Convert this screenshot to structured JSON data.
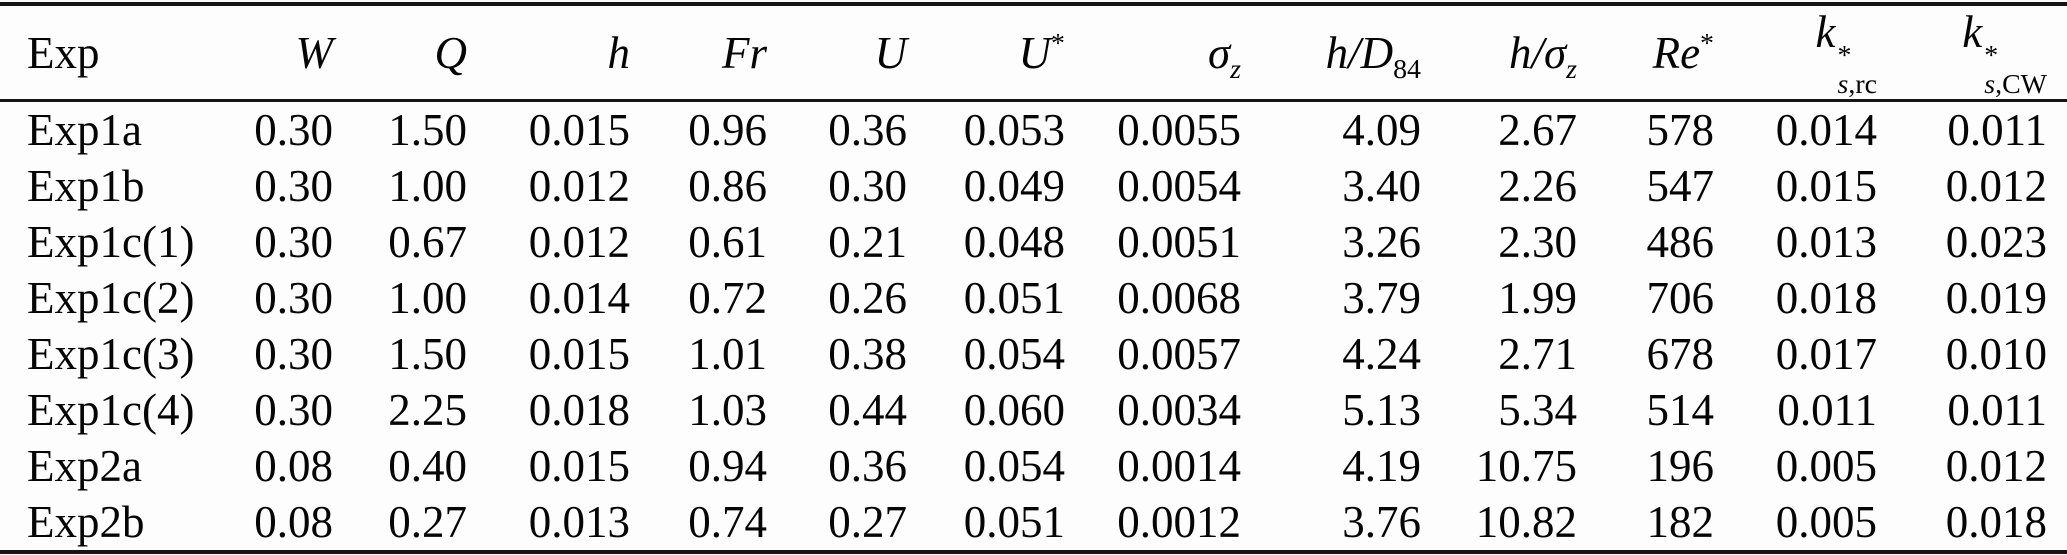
{
  "colors": {
    "background": "#fdfdfd",
    "text": "#050505",
    "rule": "#151515"
  },
  "table": {
    "columns": [
      {
        "label": "Exp"
      },
      {
        "symbol": "W"
      },
      {
        "symbol": "Q"
      },
      {
        "symbol": "h"
      },
      {
        "symbol": "Fr"
      },
      {
        "symbol": "U"
      },
      {
        "symbol": "U",
        "sup": "*"
      },
      {
        "symbol": "σ",
        "sub": "z"
      },
      {
        "symbol": "h/D",
        "sub": "84"
      },
      {
        "symbol": "h/σ",
        "sub": "z"
      },
      {
        "symbol": "Re",
        "sup": "*"
      },
      {
        "symbol": "k",
        "sup": "*",
        "sub_italic": "s",
        "sub_roman": ",rc"
      },
      {
        "symbol": "k",
        "sup": "*",
        "sub_italic": "s",
        "sub_roman": ",CW"
      }
    ],
    "rows": [
      {
        "exp": "Exp1a",
        "values": [
          "0.30",
          "1.50",
          "0.015",
          "0.96",
          "0.36",
          "0.053",
          "0.0055",
          "4.09",
          "2.67",
          "578",
          "0.014",
          "0.011"
        ]
      },
      {
        "exp": "Exp1b",
        "values": [
          "0.30",
          "1.00",
          "0.012",
          "0.86",
          "0.30",
          "0.049",
          "0.0054",
          "3.40",
          "2.26",
          "547",
          "0.015",
          "0.012"
        ]
      },
      {
        "exp": "Exp1c(1)",
        "values": [
          "0.30",
          "0.67",
          "0.012",
          "0.61",
          "0.21",
          "0.048",
          "0.0051",
          "3.26",
          "2.30",
          "486",
          "0.013",
          "0.023"
        ]
      },
      {
        "exp": "Exp1c(2)",
        "values": [
          "0.30",
          "1.00",
          "0.014",
          "0.72",
          "0.26",
          "0.051",
          "0.0068",
          "3.79",
          "1.99",
          "706",
          "0.018",
          "0.019"
        ]
      },
      {
        "exp": "Exp1c(3)",
        "values": [
          "0.30",
          "1.50",
          "0.015",
          "1.01",
          "0.38",
          "0.054",
          "0.0057",
          "4.24",
          "2.71",
          "678",
          "0.017",
          "0.010"
        ]
      },
      {
        "exp": "Exp1c(4)",
        "values": [
          "0.30",
          "2.25",
          "0.018",
          "1.03",
          "0.44",
          "0.060",
          "0.0034",
          "5.13",
          "5.34",
          "514",
          "0.011",
          "0.011"
        ]
      },
      {
        "exp": "Exp2a",
        "values": [
          "0.08",
          "0.40",
          "0.015",
          "0.94",
          "0.36",
          "0.054",
          "0.0014",
          "4.19",
          "10.75",
          "196",
          "0.005",
          "0.012"
        ]
      },
      {
        "exp": "Exp2b",
        "values": [
          "0.08",
          "0.27",
          "0.013",
          "0.74",
          "0.27",
          "0.051",
          "0.0012",
          "3.76",
          "10.82",
          "182",
          "0.005",
          "0.018"
        ]
      }
    ]
  }
}
